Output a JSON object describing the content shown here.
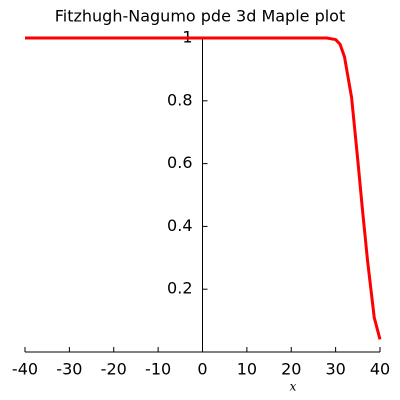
{
  "chart_data": {
    "type": "line",
    "title": "Fitzhugh-Nagumo pde 3d Maple plot",
    "x_label": "x",
    "x": [
      -40,
      28,
      30,
      31,
      32,
      33.6,
      35,
      36,
      37.2,
      38.7,
      40
    ],
    "values": [
      1,
      1,
      0.995,
      0.98,
      0.94,
      0.81,
      0.61,
      0.46,
      0.29,
      0.11,
      0.04
    ],
    "color": "#ff0000",
    "xlim": [
      -40,
      40
    ],
    "xticks": [
      -40,
      -30,
      -20,
      -10,
      0,
      10,
      20,
      30,
      40
    ],
    "ylim": [
      0,
      1
    ],
    "yticks": [
      0.2,
      0.4,
      0.6,
      0.8,
      1
    ]
  }
}
